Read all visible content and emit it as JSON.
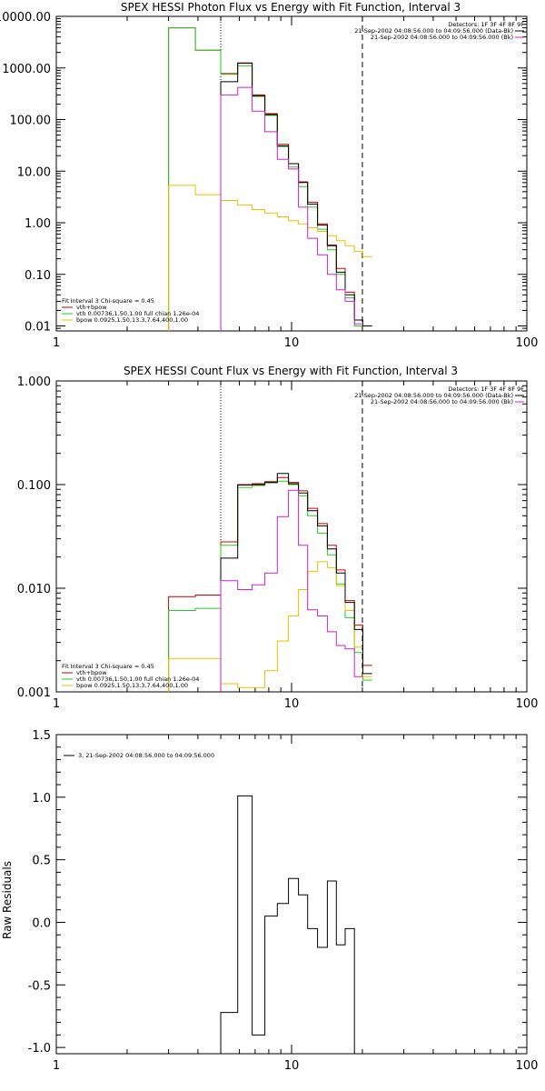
{
  "colors": {
    "background": "#ffffff",
    "axis": "#000000",
    "total": "#000000",
    "vth_bpow": "#cc0000",
    "vth": "#22cc22",
    "bpow": "#e8c000",
    "bk": "#cc22cc"
  },
  "chart_data": [
    {
      "type": "line",
      "title": "SPEX HESSI Photon Flux vs Energy with Fit Function, Interval 3",
      "xlabel": "",
      "ylabel": "",
      "xscale": "log",
      "yscale": "log",
      "xlim": [
        1,
        100
      ],
      "ylim": [
        0.008,
        10000
      ],
      "xticks": [
        {
          "value": 1,
          "label": "1"
        },
        {
          "value": 10,
          "label": "10"
        },
        {
          "value": 100,
          "label": "100"
        }
      ],
      "yticks": [
        {
          "value": 0.01,
          "label": "0.01"
        },
        {
          "value": 0.1,
          "label": "0.10"
        },
        {
          "value": 1,
          "label": "1.00"
        },
        {
          "value": 10,
          "label": "10.00"
        },
        {
          "value": 100,
          "label": "100.00"
        },
        {
          "value": 1000,
          "label": "1000.00"
        },
        {
          "value": 10000,
          "label": "10000.00"
        }
      ],
      "vlines": [
        {
          "x": 5,
          "style": "dotted"
        },
        {
          "x": 20,
          "style": "dashed"
        }
      ],
      "annotations_top_right": [
        "Detectors: 1F 3F 4F 8F 9F",
        "21-Sep-2002 04:08:56.000 to 04:09:56.000 (Data-Bk)",
        "21-Sep-2002 04:08:56.000 to 04:09:56.000 (Bk)"
      ],
      "legend_position": "bottom-left",
      "legend": [
        "Fit Interval 3   Chi-square = 0.45",
        "vth+bpow",
        "vth 0.00736,1.50,1.00  full chian 1.26e-04",
        "bpow 0.0925,1.50,13.3,7.64,400,1.00"
      ],
      "bin_edges": [
        3.0,
        3.9,
        5.0,
        5.9,
        6.8,
        7.7,
        8.7,
        9.7,
        10.7,
        11.7,
        12.9,
        14.2,
        15.5,
        16.9,
        18.5,
        20.1,
        22.0
      ],
      "series": [
        {
          "name": "vth+bpow",
          "color_key": "vth_bpow",
          "values": [
            6000,
            2200,
            780,
            1230,
            300,
            130,
            33,
            14,
            6.2,
            2.5,
            0.95,
            0.37,
            0.13,
            0.045,
            0.013,
            null
          ]
        },
        {
          "name": "vth",
          "color_key": "vth",
          "values": [
            6000,
            2200,
            750,
            1100,
            280,
            120,
            30,
            12,
            5.0,
            2.0,
            0.75,
            0.3,
            0.1,
            0.035,
            0.01,
            null
          ]
        },
        {
          "name": "bpow",
          "color_key": "bpow",
          "values": [
            5.3,
            3.5,
            2.7,
            2.2,
            1.8,
            1.55,
            1.3,
            1.1,
            0.95,
            0.8,
            0.68,
            0.56,
            0.45,
            0.36,
            0.28,
            0.22
          ]
        },
        {
          "name": "Data-Bk",
          "color_key": "total",
          "values": [
            null,
            null,
            540,
            1250,
            290,
            125,
            31,
            14,
            6.0,
            2.3,
            0.9,
            0.36,
            0.11,
            0.04,
            0.013,
            0.01
          ]
        },
        {
          "name": "Bk",
          "color_key": "bk",
          "values": [
            null,
            null,
            300,
            420,
            145,
            58,
            17,
            11,
            2.0,
            0.5,
            0.24,
            0.1,
            0.05,
            0.03,
            0.011,
            null
          ]
        }
      ]
    },
    {
      "type": "line",
      "title": "SPEX HESSI Count Flux vs Energy with Fit Function, Interval 3",
      "xlabel": "",
      "ylabel": "",
      "xscale": "log",
      "yscale": "log",
      "xlim": [
        1,
        100
      ],
      "ylim": [
        0.001,
        1
      ],
      "xticks": [
        {
          "value": 1,
          "label": "1"
        },
        {
          "value": 10,
          "label": "10"
        },
        {
          "value": 100,
          "label": "100"
        }
      ],
      "yticks": [
        {
          "value": 0.001,
          "label": "0.001"
        },
        {
          "value": 0.01,
          "label": "0.010"
        },
        {
          "value": 0.1,
          "label": "0.100"
        },
        {
          "value": 1,
          "label": "1.000"
        }
      ],
      "vlines": [
        {
          "x": 5,
          "style": "dotted"
        },
        {
          "x": 20,
          "style": "dashed"
        }
      ],
      "annotations_top_right": [
        "Detectors: 1F 3F 4F 8F 9F",
        "21-Sep-2002 04:08:56.000 to 04:09:56.000 (Data-Bk)",
        "21-Sep-2002 04:08:56.000 to 04:09:56.000 (Bk)"
      ],
      "legend_position": "bottom-left",
      "legend": [
        "Fit Interval 3   Chi-square = 0.45",
        "vth+bpow",
        "vth 0.00736,1.50,1.00  full chian 1.26e-04",
        "bpow 0.0925,1.50,13.3,7.64,400,1.00"
      ],
      "bin_edges": [
        3.0,
        3.9,
        5.0,
        5.9,
        6.8,
        7.7,
        8.7,
        9.7,
        10.7,
        11.7,
        12.9,
        14.2,
        15.5,
        16.9,
        18.5,
        20.1,
        22.0
      ],
      "series": [
        {
          "name": "vth+bpow",
          "color_key": "vth_bpow",
          "values": [
            0.0083,
            0.0086,
            0.028,
            0.1,
            0.102,
            0.107,
            0.117,
            0.105,
            0.087,
            0.059,
            0.042,
            0.026,
            0.015,
            0.0076,
            0.0044,
            0.0018
          ]
        },
        {
          "name": "vth",
          "color_key": "vth",
          "values": [
            0.0061,
            0.0064,
            0.026,
            0.094,
            0.098,
            0.104,
            0.108,
            0.1,
            0.078,
            0.05,
            0.034,
            0.021,
            0.011,
            0.0052,
            0.0024,
            0.0013
          ]
        },
        {
          "name": "bpow",
          "color_key": "bpow",
          "values": [
            0.0021,
            0.0021,
            0.0012,
            0.0011,
            0.0011,
            0.0016,
            0.0031,
            0.0054,
            0.0097,
            0.0145,
            0.018,
            0.0158,
            0.0106,
            0.0061,
            0.0027,
            0.0014
          ]
        },
        {
          "name": "Data-Bk",
          "color_key": "total",
          "values": [
            null,
            null,
            0.0195,
            0.099,
            0.1,
            0.105,
            0.128,
            0.102,
            0.083,
            0.056,
            0.04,
            0.024,
            0.014,
            0.0073,
            0.004,
            0.0015
          ]
        },
        {
          "name": "Bk",
          "color_key": "bk",
          "values": [
            null,
            null,
            0.0118,
            0.0097,
            0.0108,
            0.014,
            0.049,
            0.088,
            0.026,
            0.0062,
            0.0054,
            0.0038,
            0.0028,
            0.0026,
            0.0014,
            null
          ]
        }
      ]
    },
    {
      "type": "line",
      "title": "",
      "xlabel": "",
      "ylabel": "Raw Residuals",
      "xscale": "log",
      "yscale": "linear",
      "xlim": [
        1,
        100
      ],
      "ylim": [
        -1.05,
        1.5
      ],
      "xticks": [
        {
          "value": 1,
          "label": "1"
        },
        {
          "value": 10,
          "label": "10"
        },
        {
          "value": 100,
          "label": "100"
        }
      ],
      "yticks": [
        {
          "value": -1.0,
          "label": "-1.0"
        },
        {
          "value": -0.5,
          "label": "-0.5"
        },
        {
          "value": 0.0,
          "label": "0.0"
        },
        {
          "value": 0.5,
          "label": "0.5"
        },
        {
          "value": 1.0,
          "label": "1.0"
        },
        {
          "value": 1.5,
          "label": "1.5"
        }
      ],
      "vlines": [],
      "annotations_top_right": [],
      "legend_position": "top-left",
      "legend": [
        "3, 21-Sep-2002 04:08:56.000 to 04:09:56.000"
      ],
      "bin_edges": [
        5.0,
        5.9,
        6.8,
        7.7,
        8.7,
        9.7,
        10.7,
        11.7,
        12.9,
        14.2,
        15.5,
        16.9,
        18.5,
        20.1
      ],
      "series": [
        {
          "color_key": "total",
          "values": [
            -0.72,
            1.01,
            -0.9,
            0.05,
            0.15,
            0.35,
            0.22,
            -0.05,
            -0.2,
            0.33,
            -0.18,
            -0.05,
            -1.06
          ]
        }
      ]
    }
  ]
}
